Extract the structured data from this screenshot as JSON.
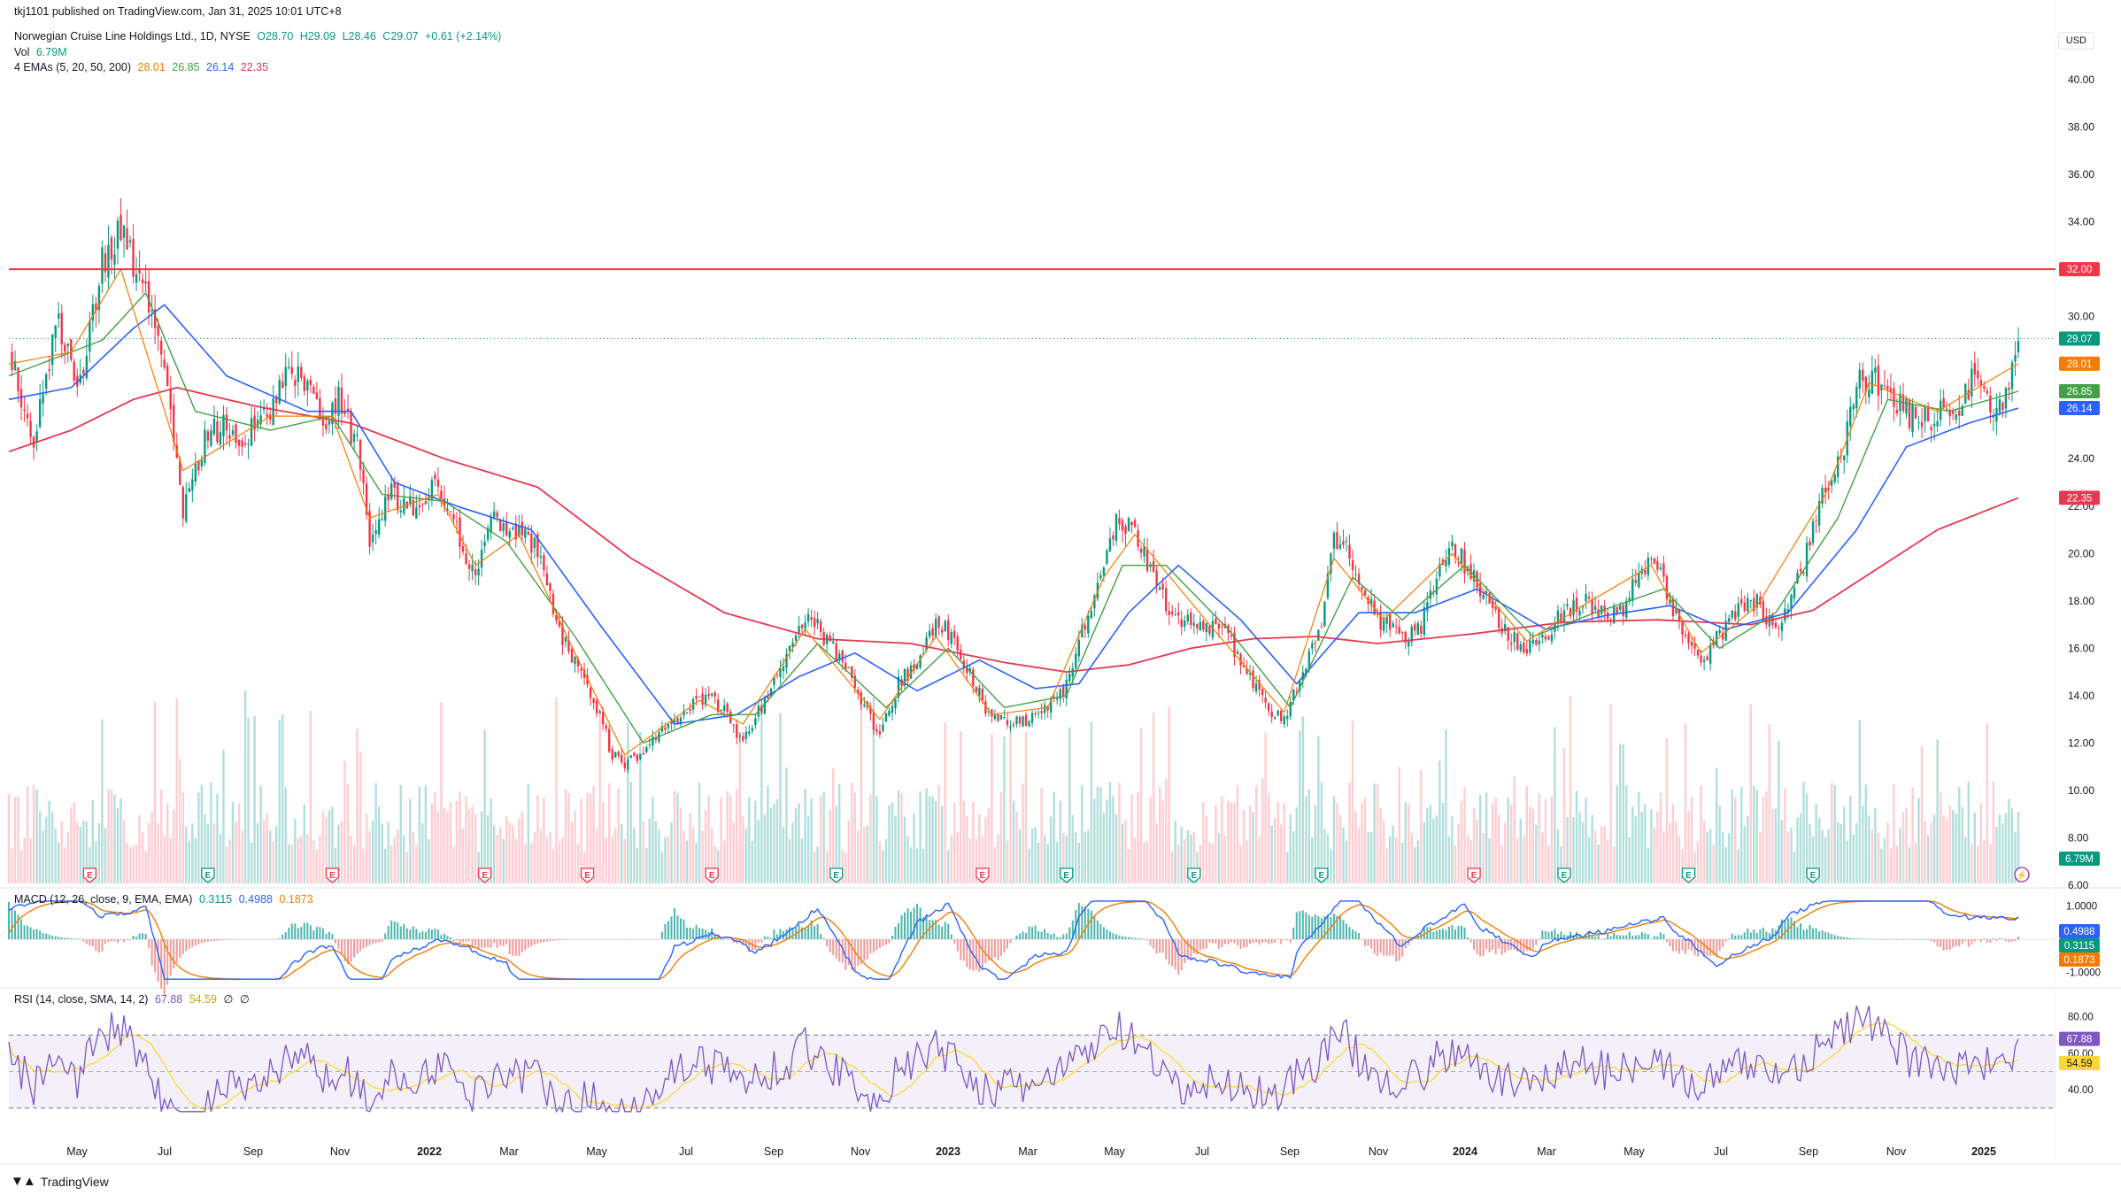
{
  "published": "tkj1101 published on TradingView.com, Jan 31, 2025 10:01 UTC+8",
  "symbol": "Norwegian Cruise Line Holdings Ltd., 1D, NYSE",
  "ohlc": {
    "o": "O28.70",
    "h": "H29.09",
    "l": "L28.46",
    "c": "C29.07",
    "chg": "+0.61 (+2.14%)"
  },
  "vol": {
    "label": "Vol",
    "value": "6.79M"
  },
  "emas": {
    "label": "4 EMAs (5, 20, 50, 200)",
    "v5": "28.01",
    "v20": "26.85",
    "v50": "26.14",
    "v200": "22.35"
  },
  "macd": {
    "label": "MACD (12, 26, close, 9, EMA, EMA)",
    "hist": "0.3115",
    "macd": "0.4988",
    "signal": "0.1873"
  },
  "rsi": {
    "label": "RSI (14, close, SMA, 14, 2)",
    "rsi": "67.88",
    "sma": "54.59",
    "e1": "∅",
    "e2": "∅"
  },
  "currency": "USD",
  "brand": "TradingView",
  "colors": {
    "up": "#089981",
    "down": "#f23645",
    "ema5": "#f57c00",
    "ema20": "#43a047",
    "ema50": "#2962ff",
    "ema200": "#e53950",
    "resistance": "#f23645",
    "macd": "#2962ff",
    "signal": "#f57c00",
    "rsi": "#7e57c2",
    "rsiSma": "#fdd835"
  },
  "chart_data": {
    "type": "line",
    "price_axis": {
      "ticks": [
        "6.00",
        "8.00",
        "10.00",
        "12.00",
        "14.00",
        "16.00",
        "18.00",
        "20.00",
        "22.00",
        "24.00",
        "26.00",
        "28.00",
        "30.00",
        "32.00",
        "34.00",
        "36.00",
        "38.00",
        "40.00"
      ],
      "min": 6,
      "max": 40
    },
    "x_ticks": [
      {
        "label": "May",
        "bold": false
      },
      {
        "label": "Jul",
        "bold": false
      },
      {
        "label": "Sep",
        "bold": false
      },
      {
        "label": "Nov",
        "bold": false
      },
      {
        "label": "2022",
        "bold": true
      },
      {
        "label": "Mar",
        "bold": false
      },
      {
        "label": "May",
        "bold": false
      },
      {
        "label": "Jul",
        "bold": false
      },
      {
        "label": "Sep",
        "bold": false
      },
      {
        "label": "Nov",
        "bold": false
      },
      {
        "label": "2023",
        "bold": true
      },
      {
        "label": "Mar",
        "bold": false
      },
      {
        "label": "May",
        "bold": false
      },
      {
        "label": "Jul",
        "bold": false
      },
      {
        "label": "Sep",
        "bold": false
      },
      {
        "label": "Nov",
        "bold": false
      },
      {
        "label": "2024",
        "bold": true
      },
      {
        "label": "Mar",
        "bold": false
      },
      {
        "label": "May",
        "bold": false
      },
      {
        "label": "Jul",
        "bold": false
      },
      {
        "label": "Sep",
        "bold": false
      },
      {
        "label": "Nov",
        "bold": false
      },
      {
        "label": "2025",
        "bold": true
      }
    ],
    "close_path": [
      [
        0,
        28.5
      ],
      [
        8,
        25.0
      ],
      [
        16,
        30.0
      ],
      [
        22,
        26.5
      ],
      [
        30,
        32.5
      ],
      [
        36,
        33.5
      ],
      [
        44,
        31.0
      ],
      [
        50,
        27.5
      ],
      [
        56,
        22.0
      ],
      [
        62,
        24.5
      ],
      [
        68,
        25.5
      ],
      [
        76,
        25.0
      ],
      [
        84,
        26.0
      ],
      [
        90,
        27.5
      ],
      [
        96,
        27.0
      ],
      [
        102,
        25.0
      ],
      [
        106,
        26.5
      ],
      [
        112,
        24.5
      ],
      [
        116,
        20.5
      ],
      [
        122,
        22.5
      ],
      [
        130,
        22.0
      ],
      [
        138,
        23.0
      ],
      [
        144,
        21.0
      ],
      [
        150,
        19.0
      ],
      [
        156,
        21.5
      ],
      [
        164,
        21.0
      ],
      [
        170,
        20.0
      ],
      [
        176,
        17.0
      ],
      [
        182,
        15.5
      ],
      [
        188,
        14.0
      ],
      [
        194,
        11.5
      ],
      [
        198,
        11.0
      ],
      [
        206,
        12.0
      ],
      [
        214,
        13.0
      ],
      [
        222,
        14.0
      ],
      [
        230,
        13.5
      ],
      [
        236,
        12.0
      ],
      [
        244,
        14.0
      ],
      [
        250,
        15.5
      ],
      [
        256,
        17.5
      ],
      [
        262,
        16.5
      ],
      [
        268,
        15.5
      ],
      [
        274,
        13.5
      ],
      [
        280,
        12.5
      ],
      [
        286,
        14.5
      ],
      [
        292,
        15.5
      ],
      [
        298,
        17.0
      ],
      [
        304,
        16.5
      ],
      [
        310,
        14.5
      ],
      [
        316,
        13.0
      ],
      [
        322,
        13.0
      ],
      [
        328,
        13.0
      ],
      [
        334,
        13.5
      ],
      [
        340,
        14.5
      ],
      [
        346,
        17.0
      ],
      [
        352,
        19.5
      ],
      [
        356,
        21.5
      ],
      [
        362,
        21.0
      ],
      [
        368,
        19.0
      ],
      [
        374,
        17.5
      ],
      [
        380,
        17.0
      ],
      [
        386,
        17.0
      ],
      [
        392,
        16.5
      ],
      [
        398,
        15.0
      ],
      [
        404,
        13.5
      ],
      [
        410,
        13.0
      ],
      [
        416,
        15.0
      ],
      [
        422,
        17.0
      ],
      [
        426,
        20.5
      ],
      [
        430,
        20.5
      ],
      [
        436,
        18.0
      ],
      [
        442,
        17.0
      ],
      [
        448,
        16.5
      ],
      [
        454,
        17.0
      ],
      [
        460,
        19.5
      ],
      [
        464,
        20.5
      ],
      [
        470,
        19.0
      ],
      [
        476,
        18.0
      ],
      [
        482,
        16.5
      ],
      [
        488,
        16.0
      ],
      [
        494,
        16.5
      ],
      [
        500,
        17.5
      ],
      [
        506,
        18.0
      ],
      [
        512,
        17.5
      ],
      [
        518,
        17.5
      ],
      [
        524,
        19.0
      ],
      [
        528,
        20.0
      ],
      [
        534,
        18.0
      ],
      [
        540,
        16.0
      ],
      [
        544,
        15.5
      ],
      [
        550,
        16.5
      ],
      [
        556,
        17.5
      ],
      [
        562,
        18.0
      ],
      [
        566,
        17.0
      ],
      [
        572,
        17.5
      ],
      [
        578,
        20.0
      ],
      [
        584,
        23.0
      ],
      [
        590,
        24.5
      ],
      [
        594,
        27.0
      ],
      [
        598,
        27.5
      ],
      [
        604,
        27.0
      ],
      [
        610,
        26.0
      ],
      [
        614,
        25.5
      ],
      [
        620,
        26.0
      ],
      [
        624,
        25.5
      ],
      [
        628,
        26.5
      ],
      [
        632,
        27.5
      ],
      [
        638,
        26.0
      ],
      [
        642,
        26.5
      ],
      [
        646,
        29.07
      ]
    ],
    "ema5_path": [
      [
        0,
        28.0
      ],
      [
        20,
        28.5
      ],
      [
        36,
        32.0
      ],
      [
        56,
        23.5
      ],
      [
        84,
        25.8
      ],
      [
        104,
        25.8
      ],
      [
        116,
        21.5
      ],
      [
        138,
        22.5
      ],
      [
        150,
        19.5
      ],
      [
        164,
        20.8
      ],
      [
        182,
        15.8
      ],
      [
        198,
        11.5
      ],
      [
        222,
        13.8
      ],
      [
        236,
        12.8
      ],
      [
        256,
        16.8
      ],
      [
        280,
        13.0
      ],
      [
        298,
        16.5
      ],
      [
        316,
        13.2
      ],
      [
        334,
        13.5
      ],
      [
        352,
        19.0
      ],
      [
        362,
        20.8
      ],
      [
        386,
        17.0
      ],
      [
        410,
        13.3
      ],
      [
        426,
        19.8
      ],
      [
        442,
        17.2
      ],
      [
        464,
        20.0
      ],
      [
        488,
        16.3
      ],
      [
        506,
        17.8
      ],
      [
        528,
        19.5
      ],
      [
        544,
        15.8
      ],
      [
        562,
        17.8
      ],
      [
        584,
        22.5
      ],
      [
        598,
        27.2
      ],
      [
        620,
        26.0
      ],
      [
        646,
        28.01
      ]
    ],
    "ema20_path": [
      [
        0,
        27.5
      ],
      [
        30,
        29.0
      ],
      [
        44,
        31.0
      ],
      [
        60,
        26.0
      ],
      [
        84,
        25.2
      ],
      [
        104,
        25.8
      ],
      [
        120,
        22.5
      ],
      [
        140,
        22.2
      ],
      [
        160,
        20.5
      ],
      [
        182,
        16.5
      ],
      [
        204,
        12.0
      ],
      [
        226,
        13.2
      ],
      [
        240,
        13.2
      ],
      [
        260,
        16.2
      ],
      [
        282,
        13.5
      ],
      [
        302,
        16.0
      ],
      [
        320,
        13.5
      ],
      [
        340,
        14.0
      ],
      [
        358,
        19.5
      ],
      [
        372,
        19.5
      ],
      [
        392,
        16.8
      ],
      [
        412,
        13.5
      ],
      [
        432,
        19.0
      ],
      [
        448,
        17.2
      ],
      [
        468,
        19.5
      ],
      [
        490,
        16.5
      ],
      [
        510,
        17.5
      ],
      [
        532,
        18.5
      ],
      [
        550,
        16.0
      ],
      [
        568,
        17.5
      ],
      [
        588,
        21.5
      ],
      [
        604,
        26.5
      ],
      [
        624,
        26.0
      ],
      [
        646,
        26.85
      ]
    ],
    "ema50_path": [
      [
        0,
        26.5
      ],
      [
        20,
        27.0
      ],
      [
        40,
        29.5
      ],
      [
        50,
        30.5
      ],
      [
        70,
        27.5
      ],
      [
        96,
        26.0
      ],
      [
        110,
        26.0
      ],
      [
        124,
        23.0
      ],
      [
        144,
        22.0
      ],
      [
        168,
        21.0
      ],
      [
        190,
        17.0
      ],
      [
        214,
        12.8
      ],
      [
        234,
        13.2
      ],
      [
        254,
        14.8
      ],
      [
        272,
        15.8
      ],
      [
        292,
        14.2
      ],
      [
        312,
        15.5
      ],
      [
        330,
        14.3
      ],
      [
        344,
        14.5
      ],
      [
        360,
        17.5
      ],
      [
        376,
        19.5
      ],
      [
        396,
        17.2
      ],
      [
        414,
        14.5
      ],
      [
        434,
        17.5
      ],
      [
        452,
        17.5
      ],
      [
        472,
        18.5
      ],
      [
        494,
        16.8
      ],
      [
        514,
        17.4
      ],
      [
        534,
        17.8
      ],
      [
        552,
        16.8
      ],
      [
        572,
        17.5
      ],
      [
        594,
        21.0
      ],
      [
        610,
        24.5
      ],
      [
        630,
        25.5
      ],
      [
        646,
        26.14
      ]
    ],
    "ema200_path": [
      [
        0,
        24.3
      ],
      [
        20,
        25.2
      ],
      [
        40,
        26.5
      ],
      [
        54,
        27.0
      ],
      [
        80,
        26.2
      ],
      [
        110,
        25.5
      ],
      [
        140,
        24.0
      ],
      [
        170,
        22.8
      ],
      [
        200,
        19.8
      ],
      [
        230,
        17.5
      ],
      [
        260,
        16.4
      ],
      [
        290,
        16.2
      ],
      [
        320,
        15.4
      ],
      [
        340,
        15.0
      ],
      [
        360,
        15.3
      ],
      [
        380,
        16.0
      ],
      [
        400,
        16.4
      ],
      [
        420,
        16.5
      ],
      [
        440,
        16.2
      ],
      [
        470,
        16.6
      ],
      [
        500,
        17.1
      ],
      [
        530,
        17.2
      ],
      [
        560,
        17.0
      ],
      [
        580,
        17.6
      ],
      [
        600,
        19.3
      ],
      [
        620,
        21.0
      ],
      [
        646,
        22.35
      ]
    ],
    "resistance": 32.0,
    "last_price": 29.07,
    "volume": {
      "last": "6.79M",
      "ticks_hint": "bars"
    },
    "earnings_markers": [
      {
        "t": 26,
        "kind": "E",
        "color": "red"
      },
      {
        "t": 64,
        "kind": "E",
        "color": "green"
      },
      {
        "t": 104,
        "kind": "E",
        "color": "red"
      },
      {
        "t": 153,
        "kind": "E",
        "color": "red"
      },
      {
        "t": 186,
        "kind": "E",
        "color": "red"
      },
      {
        "t": 226,
        "kind": "E",
        "color": "red"
      },
      {
        "t": 266,
        "kind": "E",
        "color": "green"
      },
      {
        "t": 313,
        "kind": "E",
        "color": "red"
      },
      {
        "t": 340,
        "kind": "E",
        "color": "green"
      },
      {
        "t": 381,
        "kind": "E",
        "color": "green"
      },
      {
        "t": 422,
        "kind": "E",
        "color": "green"
      },
      {
        "t": 471,
        "kind": "E",
        "color": "red"
      },
      {
        "t": 500,
        "kind": "E",
        "color": "green"
      },
      {
        "t": 540,
        "kind": "E",
        "color": "green"
      },
      {
        "t": 580,
        "kind": "E",
        "color": "green"
      }
    ],
    "macd_axis": {
      "ticks": [
        "1.0000",
        "-1.0000"
      ],
      "min": -1.3,
      "max": 1.2
    },
    "rsi_axis": {
      "ticks": [
        "40.00",
        "60.00",
        "80.00"
      ],
      "upper": 70,
      "lower": 30,
      "mid": 50,
      "min": 25,
      "max": 90
    }
  }
}
